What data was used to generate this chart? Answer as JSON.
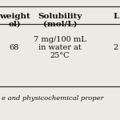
{
  "col1_header_line1": "weight",
  "col1_header_line2": "ol)",
  "col2_header_line1": "Solubility",
  "col2_header_line2": "(mol/L)",
  "col3_header": "L",
  "col1_value": "68",
  "col2_value_line1": "7 mg/100 mL",
  "col2_value_line2": "in water at",
  "col2_value_line3": "25°C",
  "col3_value": "2",
  "caption": "e and physicochemical proper",
  "bg_color": "#edeae4",
  "border_color": "#333333",
  "text_color": "#111111"
}
